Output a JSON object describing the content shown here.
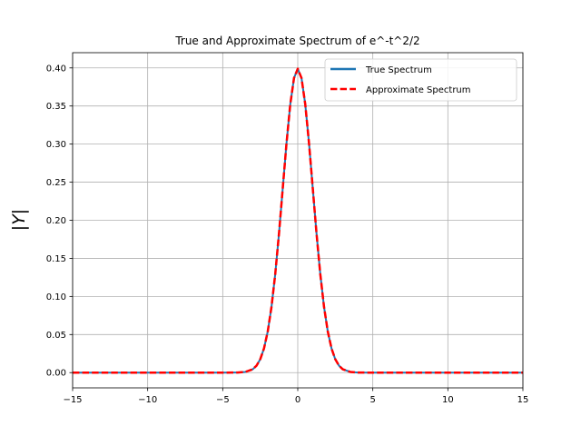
{
  "chart_data": {
    "type": "line",
    "title": "True and Approximate Spectrum of e^-t^2/2",
    "xlabel": "",
    "ylabel": "|Y|",
    "xlim": [
      -15,
      15
    ],
    "ylim": [
      -0.02,
      0.42
    ],
    "xticks": [
      -15,
      -10,
      -5,
      0,
      5,
      10,
      15
    ],
    "xtick_labels": [
      "−15",
      "−10",
      "−5",
      "0",
      "5",
      "10",
      "15"
    ],
    "yticks": [
      0.0,
      0.05,
      0.1,
      0.15,
      0.2,
      0.25,
      0.3,
      0.35,
      0.4
    ],
    "ytick_labels": [
      "0.00",
      "0.05",
      "0.10",
      "0.15",
      "0.20",
      "0.25",
      "0.30",
      "0.35",
      "0.40"
    ],
    "grid": true,
    "legend_position": "top-right",
    "series": [
      {
        "name": "True Spectrum",
        "color": "#1f77b4",
        "style": "solid",
        "x": [
          -15,
          -10,
          -5,
          -4,
          -3.5,
          -3,
          -2.75,
          -2.5,
          -2.25,
          -2,
          -1.75,
          -1.5,
          -1.25,
          -1,
          -0.75,
          -0.5,
          -0.25,
          0,
          0.25,
          0.5,
          0.75,
          1,
          1.25,
          1.5,
          1.75,
          2,
          2.25,
          2.5,
          2.75,
          3,
          3.5,
          4,
          5,
          10,
          15
        ],
        "y": [
          0,
          0,
          0,
          0.0001,
          0.0009,
          0.0044,
          0.0091,
          0.0175,
          0.0317,
          0.054,
          0.0863,
          0.1295,
          0.1826,
          0.242,
          0.3011,
          0.3521,
          0.3867,
          0.3989,
          0.3867,
          0.3521,
          0.3011,
          0.242,
          0.1826,
          0.1295,
          0.0863,
          0.054,
          0.0317,
          0.0175,
          0.0091,
          0.0044,
          0.0009,
          0.0001,
          0,
          0,
          0
        ]
      },
      {
        "name": "Approximate Spectrum",
        "color": "#ff0000",
        "style": "dashed",
        "x": [
          -15,
          -10,
          -5,
          -4,
          -3.5,
          -3,
          -2.75,
          -2.5,
          -2.25,
          -2,
          -1.75,
          -1.5,
          -1.25,
          -1,
          -0.75,
          -0.5,
          -0.25,
          0,
          0.25,
          0.5,
          0.75,
          1,
          1.25,
          1.5,
          1.75,
          2,
          2.25,
          2.5,
          2.75,
          3,
          3.5,
          4,
          5,
          10,
          15
        ],
        "y": [
          0,
          0,
          0,
          0.0001,
          0.0009,
          0.0044,
          0.0091,
          0.0175,
          0.0317,
          0.054,
          0.0863,
          0.1295,
          0.1826,
          0.242,
          0.3011,
          0.3521,
          0.3867,
          0.3989,
          0.3867,
          0.3521,
          0.3011,
          0.242,
          0.1826,
          0.1295,
          0.0863,
          0.054,
          0.0317,
          0.0175,
          0.0091,
          0.0044,
          0.0009,
          0.0001,
          0,
          0,
          0
        ]
      }
    ]
  }
}
